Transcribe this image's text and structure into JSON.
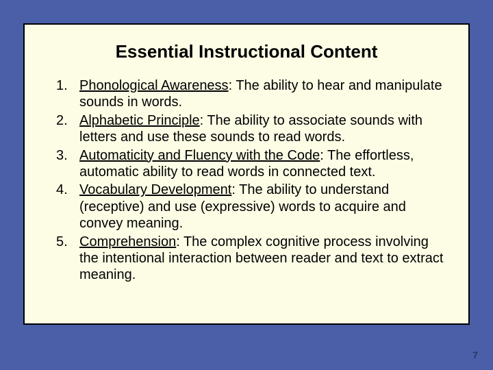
{
  "slide": {
    "background_color": "#4a5fa8",
    "card": {
      "background_color": "#fdfde6",
      "border_color": "#000000",
      "title": "Essential Instructional Content",
      "title_fontsize": 26,
      "items": [
        {
          "term": "Phonological Awareness",
          "definition": ": The ability to hear and manipulate sounds in words."
        },
        {
          "term": "Alphabetic Principle",
          "definition": ": The ability to associate sounds with letters and use these sounds to read words."
        },
        {
          "term": "Automaticity and Fluency with the Code",
          "definition": ": The effortless, automatic ability to read words in connected text."
        },
        {
          "term": "Vocabulary Development",
          "definition": ": The ability to understand (receptive) and use (expressive) words to acquire and convey meaning."
        },
        {
          "term": "Comprehension",
          "definition": ": The complex cognitive process involving the intentional interaction between reader and text to extract meaning."
        }
      ],
      "item_fontsize": 20
    },
    "page_number": "7",
    "page_number_color": "#2a3566"
  }
}
